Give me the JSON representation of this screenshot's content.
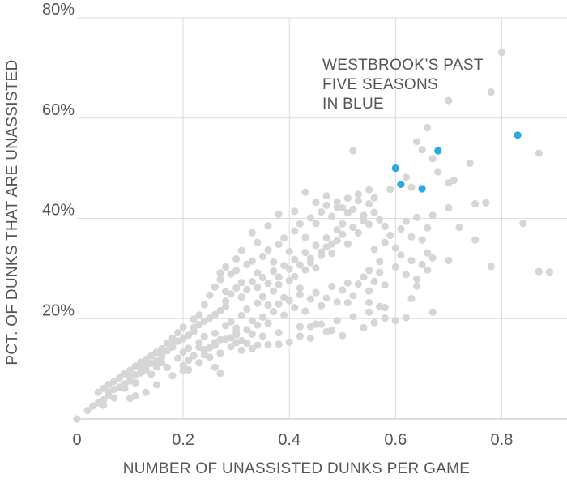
{
  "chart_data": {
    "type": "scatter",
    "title": "",
    "xlabel": "NUMBER OF UNASSISTED DUNKS PER GAME",
    "ylabel": "PCT. OF DUNKS THAT ARE UNASSISTED",
    "xlim": [
      0,
      0.9
    ],
    "ylim": [
      0,
      80
    ],
    "x_ticks": [
      0,
      0.2,
      0.4,
      0.6,
      0.8
    ],
    "x_tick_labels": [
      "0",
      "0.2",
      "0.4",
      "0.6",
      "0.8"
    ],
    "y_ticks": [
      20,
      40,
      60,
      80
    ],
    "y_tick_labels": [
      "20%",
      "40%",
      "60%",
      "80%"
    ],
    "grid": true,
    "annotation": [
      "WESTBROOK’S PAST",
      "FIVE SEASONS",
      "IN BLUE"
    ],
    "colors": {
      "others": "#d6d6d6",
      "highlight": "#29abe2"
    },
    "series": [
      {
        "points": [
          [
            0.0,
            0.0
          ],
          [
            0.02,
            1.7
          ],
          [
            0.03,
            2.6
          ],
          [
            0.04,
            3.2
          ],
          [
            0.05,
            3.8
          ],
          [
            0.06,
            4.6
          ],
          [
            0.06,
            5.4
          ],
          [
            0.07,
            5.9
          ],
          [
            0.08,
            6.3
          ],
          [
            0.09,
            7.0
          ],
          [
            0.1,
            7.6
          ],
          [
            0.1,
            8.4
          ],
          [
            0.11,
            8.8
          ],
          [
            0.12,
            9.2
          ],
          [
            0.13,
            9.8
          ],
          [
            0.13,
            10.6
          ],
          [
            0.14,
            11.1
          ],
          [
            0.15,
            11.6
          ],
          [
            0.16,
            12.4
          ],
          [
            0.16,
            13.0
          ],
          [
            0.17,
            13.6
          ],
          [
            0.18,
            14.3
          ],
          [
            0.18,
            14.9
          ],
          [
            0.19,
            15.5
          ],
          [
            0.2,
            16.0
          ],
          [
            0.21,
            16.7
          ],
          [
            0.22,
            17.4
          ],
          [
            0.22,
            18.2
          ],
          [
            0.23,
            18.8
          ],
          [
            0.24,
            19.5
          ],
          [
            0.25,
            20.1
          ],
          [
            0.26,
            20.8
          ],
          [
            0.27,
            21.6
          ],
          [
            0.28,
            22.4
          ],
          [
            0.09,
            6.1
          ],
          [
            0.11,
            7.2
          ],
          [
            0.12,
            10.1
          ],
          [
            0.14,
            8.9
          ],
          [
            0.15,
            10.4
          ],
          [
            0.16,
            11.2
          ],
          [
            0.17,
            10.3
          ],
          [
            0.19,
            12.1
          ],
          [
            0.2,
            13.3
          ],
          [
            0.21,
            14.1
          ],
          [
            0.21,
            11.7
          ],
          [
            0.23,
            15.2
          ],
          [
            0.24,
            16.4
          ],
          [
            0.25,
            14.2
          ],
          [
            0.26,
            17.1
          ],
          [
            0.27,
            15.8
          ],
          [
            0.28,
            18.6
          ],
          [
            0.29,
            19.4
          ],
          [
            0.3,
            17.3
          ],
          [
            0.31,
            20.6
          ],
          [
            0.32,
            21.9
          ],
          [
            0.33,
            19.6
          ],
          [
            0.34,
            23.1
          ],
          [
            0.35,
            24.4
          ],
          [
            0.36,
            22.7
          ],
          [
            0.37,
            25.5
          ],
          [
            0.38,
            26.8
          ],
          [
            0.39,
            24.2
          ],
          [
            0.4,
            27.6
          ],
          [
            0.41,
            28.4
          ],
          [
            0.42,
            26.1
          ],
          [
            0.43,
            29.7
          ],
          [
            0.44,
            31.2
          ],
          [
            0.45,
            30.1
          ],
          [
            0.46,
            32.6
          ],
          [
            0.47,
            34.3
          ],
          [
            0.48,
            33.0
          ],
          [
            0.49,
            35.6
          ],
          [
            0.5,
            36.8
          ],
          [
            0.51,
            34.9
          ],
          [
            0.52,
            38.2
          ],
          [
            0.53,
            37.1
          ],
          [
            0.54,
            39.5
          ],
          [
            0.55,
            38.8
          ],
          [
            0.26,
            26.3
          ],
          [
            0.27,
            27.8
          ],
          [
            0.28,
            25.4
          ],
          [
            0.29,
            28.9
          ],
          [
            0.3,
            29.6
          ],
          [
            0.31,
            27.2
          ],
          [
            0.32,
            30.8
          ],
          [
            0.33,
            31.5
          ],
          [
            0.34,
            29.1
          ],
          [
            0.35,
            32.4
          ],
          [
            0.36,
            33.7
          ],
          [
            0.37,
            31.3
          ],
          [
            0.38,
            34.8
          ],
          [
            0.39,
            36.1
          ],
          [
            0.4,
            33.4
          ],
          [
            0.41,
            37.5
          ],
          [
            0.42,
            38.9
          ],
          [
            0.43,
            36.2
          ],
          [
            0.44,
            40.1
          ],
          [
            0.45,
            39.0
          ],
          [
            0.46,
            41.3
          ],
          [
            0.47,
            42.6
          ],
          [
            0.48,
            40.4
          ],
          [
            0.49,
            43.3
          ],
          [
            0.5,
            42.1
          ],
          [
            0.51,
            44.0
          ],
          [
            0.52,
            41.8
          ],
          [
            0.53,
            43.5
          ],
          [
            0.54,
            40.6
          ],
          [
            0.55,
            42.9
          ],
          [
            0.56,
            41.2
          ],
          [
            0.57,
            39.7
          ],
          [
            0.58,
            38.4
          ],
          [
            0.29,
            16.2
          ],
          [
            0.3,
            18.1
          ],
          [
            0.31,
            15.6
          ],
          [
            0.32,
            17.8
          ],
          [
            0.33,
            16.9
          ],
          [
            0.34,
            18.7
          ],
          [
            0.35,
            20.3
          ],
          [
            0.36,
            19.1
          ],
          [
            0.37,
            21.4
          ],
          [
            0.38,
            22.9
          ],
          [
            0.39,
            20.7
          ],
          [
            0.4,
            23.6
          ],
          [
            0.41,
            22.2
          ],
          [
            0.42,
            24.8
          ],
          [
            0.43,
            21.5
          ],
          [
            0.44,
            23.9
          ],
          [
            0.45,
            25.2
          ],
          [
            0.46,
            22.6
          ],
          [
            0.47,
            24.1
          ],
          [
            0.48,
            26.4
          ],
          [
            0.49,
            23.3
          ],
          [
            0.5,
            25.7
          ],
          [
            0.51,
            27.1
          ],
          [
            0.52,
            24.6
          ],
          [
            0.53,
            26.9
          ],
          [
            0.54,
            28.3
          ],
          [
            0.55,
            25.5
          ],
          [
            0.56,
            27.4
          ],
          [
            0.57,
            29.2
          ],
          [
            0.58,
            26.7
          ],
          [
            0.2,
            10.6
          ],
          [
            0.21,
            9.8
          ],
          [
            0.22,
            12.6
          ],
          [
            0.23,
            11.2
          ],
          [
            0.24,
            13.8
          ],
          [
            0.25,
            12.3
          ],
          [
            0.26,
            14.7
          ],
          [
            0.27,
            13.1
          ],
          [
            0.28,
            15.9
          ],
          [
            0.29,
            14.4
          ],
          [
            0.3,
            16.8
          ],
          [
            0.31,
            13.7
          ],
          [
            0.32,
            15.1
          ],
          [
            0.33,
            14.0
          ],
          [
            0.35,
            16.5
          ],
          [
            0.36,
            14.8
          ],
          [
            0.38,
            17.2
          ],
          [
            0.4,
            15.3
          ],
          [
            0.42,
            18.4
          ],
          [
            0.44,
            16.1
          ],
          [
            0.45,
            18.9
          ],
          [
            0.47,
            17.4
          ],
          [
            0.49,
            19.6
          ],
          [
            0.5,
            16.6
          ],
          [
            0.52,
            20.4
          ],
          [
            0.54,
            18.2
          ],
          [
            0.55,
            21.3
          ],
          [
            0.56,
            19.2
          ],
          [
            0.57,
            22.4
          ],
          [
            0.58,
            20.1
          ],
          [
            0.55,
            29.6
          ],
          [
            0.56,
            33.8
          ],
          [
            0.57,
            31.4
          ],
          [
            0.58,
            35.2
          ],
          [
            0.59,
            36.6
          ],
          [
            0.6,
            34.1
          ],
          [
            0.61,
            37.9
          ],
          [
            0.62,
            39.4
          ],
          [
            0.63,
            36.3
          ],
          [
            0.64,
            40.2
          ],
          [
            0.6,
            30.3
          ],
          [
            0.61,
            32.7
          ],
          [
            0.62,
            28.8
          ],
          [
            0.63,
            31.6
          ],
          [
            0.64,
            27.9
          ],
          [
            0.65,
            30.8
          ],
          [
            0.66,
            33.1
          ],
          [
            0.65,
            35.7
          ],
          [
            0.66,
            38.1
          ],
          [
            0.67,
            40.6
          ],
          [
            0.52,
            53.5
          ],
          [
            0.53,
            44.8
          ],
          [
            0.55,
            45.7
          ],
          [
            0.56,
            44.1
          ],
          [
            0.59,
            45.8
          ],
          [
            0.62,
            48.2
          ],
          [
            0.63,
            46.2
          ],
          [
            0.64,
            55.3
          ],
          [
            0.65,
            53.7
          ],
          [
            0.66,
            58.1
          ],
          [
            0.67,
            51.9
          ],
          [
            0.68,
            49.3
          ],
          [
            0.7,
            47.1
          ],
          [
            0.71,
            47.6
          ],
          [
            0.7,
            42.1
          ],
          [
            0.72,
            38.2
          ],
          [
            0.74,
            51.0
          ],
          [
            0.75,
            42.9
          ],
          [
            0.77,
            43.1
          ],
          [
            0.78,
            65.2
          ],
          [
            0.7,
            63.5
          ],
          [
            0.8,
            73.1
          ],
          [
            0.84,
            39.0
          ],
          [
            0.87,
            29.4
          ],
          [
            0.89,
            29.3
          ],
          [
            0.87,
            53.0
          ],
          [
            0.78,
            30.4
          ],
          [
            0.75,
            35.7
          ],
          [
            0.7,
            31.6
          ],
          [
            0.67,
            32.1
          ],
          [
            0.66,
            29.7
          ],
          [
            0.64,
            26.5
          ],
          [
            0.63,
            24.0
          ],
          [
            0.62,
            20.2
          ],
          [
            0.67,
            21.3
          ],
          [
            0.6,
            19.6
          ],
          [
            0.58,
            22.2
          ],
          [
            0.55,
            23.2
          ],
          [
            0.51,
            23.2
          ],
          [
            0.48,
            17.7
          ],
          [
            0.46,
            18.9
          ],
          [
            0.44,
            18.4
          ],
          [
            0.42,
            16.5
          ],
          [
            0.38,
            14.9
          ],
          [
            0.34,
            14.7
          ],
          [
            0.3,
            15.2
          ],
          [
            0.26,
            15.2
          ],
          [
            0.24,
            12.8
          ],
          [
            0.23,
            14.3
          ],
          [
            0.27,
            9.1
          ],
          [
            0.26,
            10.3
          ],
          [
            0.2,
            9.6
          ],
          [
            0.18,
            8.6
          ],
          [
            0.15,
            6.8
          ],
          [
            0.13,
            5.3
          ],
          [
            0.11,
            4.6
          ],
          [
            0.1,
            4.1
          ],
          [
            0.07,
            4.2
          ],
          [
            0.05,
            2.7
          ],
          [
            0.45,
            43.2
          ],
          [
            0.47,
            44.5
          ],
          [
            0.49,
            42.2
          ],
          [
            0.51,
            41.1
          ],
          [
            0.43,
            45.2
          ],
          [
            0.41,
            41.4
          ],
          [
            0.38,
            40.8
          ],
          [
            0.36,
            38.5
          ],
          [
            0.34,
            35.2
          ],
          [
            0.33,
            37.1
          ],
          [
            0.31,
            33.6
          ],
          [
            0.3,
            31.9
          ],
          [
            0.28,
            30.3
          ],
          [
            0.27,
            29.1
          ],
          [
            0.25,
            24.7
          ],
          [
            0.24,
            22.8
          ],
          [
            0.23,
            20.7
          ],
          [
            0.22,
            19.9
          ],
          [
            0.2,
            18.3
          ],
          [
            0.19,
            17.2
          ],
          [
            0.18,
            16.1
          ],
          [
            0.17,
            15.1
          ],
          [
            0.16,
            14.0
          ],
          [
            0.15,
            13.3
          ],
          [
            0.14,
            12.6
          ],
          [
            0.13,
            11.9
          ],
          [
            0.12,
            11.3
          ],
          [
            0.11,
            10.5
          ],
          [
            0.1,
            9.7
          ],
          [
            0.09,
            9.0
          ],
          [
            0.08,
            8.2
          ],
          [
            0.07,
            7.5
          ],
          [
            0.06,
            6.9
          ],
          [
            0.05,
            6.1
          ],
          [
            0.04,
            5.3
          ],
          [
            0.28,
            23.5
          ],
          [
            0.29,
            24.9
          ],
          [
            0.3,
            26.1
          ],
          [
            0.31,
            24.3
          ],
          [
            0.32,
            25.8
          ],
          [
            0.33,
            27.4
          ],
          [
            0.34,
            26.2
          ],
          [
            0.35,
            28.2
          ],
          [
            0.36,
            27.0
          ],
          [
            0.37,
            29.5
          ],
          [
            0.38,
            28.3
          ],
          [
            0.39,
            30.6
          ],
          [
            0.4,
            29.9
          ],
          [
            0.41,
            31.8
          ],
          [
            0.42,
            30.7
          ],
          [
            0.43,
            33.2
          ],
          [
            0.44,
            32.0
          ],
          [
            0.45,
            34.6
          ],
          [
            0.46,
            33.3
          ],
          [
            0.47,
            36.1
          ],
          [
            0.48,
            34.9
          ],
          [
            0.49,
            37.7
          ],
          [
            0.5,
            38.9
          ]
        ]
      },
      {
        "points": [
          [
            0.6,
            50.0
          ],
          [
            0.61,
            46.8
          ],
          [
            0.65,
            45.9
          ],
          [
            0.68,
            53.5
          ],
          [
            0.83,
            56.6
          ]
        ]
      }
    ]
  }
}
